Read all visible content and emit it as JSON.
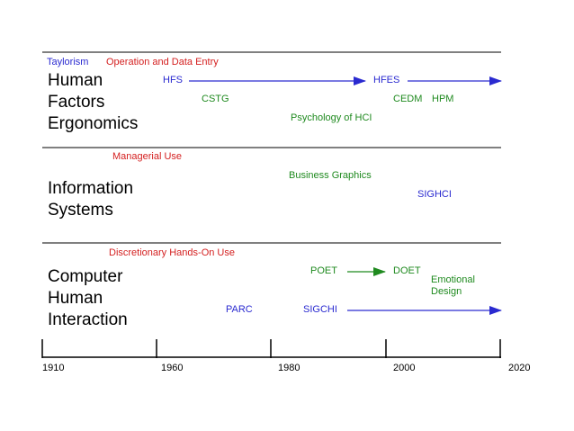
{
  "sections": [
    {
      "title": "Human\nFactors\nErgonomics",
      "tags": [
        "Taylorism",
        "Operation and Data Entry"
      ],
      "items": [
        "HFS",
        "HFES",
        "CSTG",
        "CEDM",
        "HPM",
        "Psychology of HCI"
      ]
    },
    {
      "title": "Information\nSystems",
      "tags": [
        "Managerial Use"
      ],
      "items": [
        "Business Graphics",
        "SIGHCI"
      ]
    },
    {
      "title": "Computer\nHuman\nInteraction",
      "tags": [
        "Discretionary Hands-On Use"
      ],
      "items": [
        "POET",
        "DOET",
        "Emotional\nDesign",
        "PARC",
        "SIGCHI"
      ]
    }
  ],
  "axis": {
    "ticks": [
      "1910",
      "1960",
      "1980",
      "2000",
      "2020"
    ]
  },
  "colors": {
    "blue": "#2a2ad0",
    "red": "#d42020",
    "green": "#1f8a1f",
    "line": "#000000"
  }
}
